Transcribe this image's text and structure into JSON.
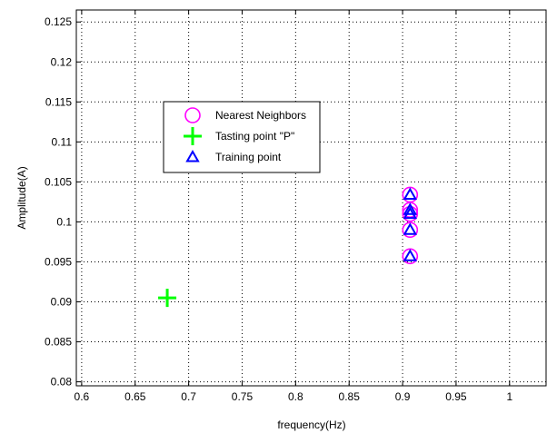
{
  "chart_data": {
    "type": "scatter",
    "title": "",
    "xlabel": "frequency(Hz)",
    "ylabel": "Amplitude(A)",
    "xlim": [
      0.595,
      1.035
    ],
    "ylim": [
      0.0795,
      0.1265
    ],
    "xticks": [
      0.6,
      0.65,
      0.7,
      0.75,
      0.8,
      0.85,
      0.9,
      0.95,
      1
    ],
    "xtick_labels": [
      "0.6",
      "0.65",
      "0.7",
      "0.75",
      "0.8",
      "0.85",
      "0.9",
      "0.95",
      "1"
    ],
    "yticks": [
      0.08,
      0.085,
      0.09,
      0.095,
      0.1,
      0.105,
      0.11,
      0.115,
      0.12,
      0.125
    ],
    "ytick_labels": [
      "0.08",
      "0.085",
      "0.09",
      "0.095",
      "0.1",
      "0.105",
      "0.11",
      "0.115",
      "0.12",
      "0.125"
    ],
    "grid": true,
    "legend_position": "upper-left",
    "series": [
      {
        "name": "Nearest Neighbors",
        "marker": "circle",
        "color": "#ff00ff",
        "x": [
          0.907,
          0.907,
          0.907,
          0.907,
          0.907
        ],
        "y": [
          0.1034,
          0.1015,
          0.101,
          0.099,
          0.0957
        ]
      },
      {
        "name": "Tasting point \"P\"",
        "marker": "plus",
        "color": "#00ff00",
        "x": [
          0.68
        ],
        "y": [
          0.0905
        ]
      },
      {
        "name": "Training point",
        "marker": "triangle",
        "color": "#0000ff",
        "x": [
          0.907,
          0.907,
          0.907,
          0.907,
          0.907
        ],
        "y": [
          0.1034,
          0.1015,
          0.101,
          0.099,
          0.0957
        ]
      }
    ]
  }
}
